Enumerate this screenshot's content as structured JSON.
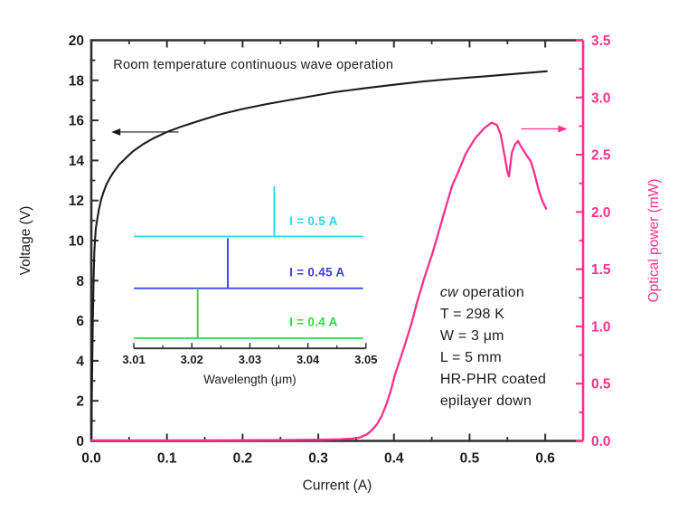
{
  "chart_data": {
    "type": "line",
    "title": "Room temperature continuous wave operation",
    "background": "#ffffff",
    "ink_color": "#1c1c1c",
    "frame_color": "#2f2f2f",
    "x_axis": {
      "label": "Current (A)",
      "range": [
        0.0,
        0.65
      ],
      "tick_values": [
        0.0,
        0.1,
        0.2,
        0.3,
        0.4,
        0.5,
        0.6
      ],
      "tick_labels": [
        "0.0",
        "0.1",
        "0.2",
        "0.3",
        "0.4",
        "0.5",
        "0.6"
      ],
      "minor_step": 0.05
    },
    "y_left": {
      "label": "Voltage (V)",
      "range": [
        0,
        20
      ],
      "tick_values": [
        0,
        2,
        4,
        6,
        8,
        10,
        12,
        14,
        16,
        18,
        20
      ],
      "tick_labels": [
        "0",
        "2",
        "4",
        "6",
        "8",
        "10",
        "12",
        "14",
        "16",
        "18",
        "20"
      ],
      "minor_step": 1,
      "color": "#1c1c1c"
    },
    "y_right": {
      "label": "Optical power (mW)",
      "range": [
        0.0,
        3.5
      ],
      "tick_values": [
        0.0,
        0.5,
        1.0,
        1.5,
        2.0,
        2.5,
        3.0,
        3.5
      ],
      "tick_labels": [
        "0.0",
        "0.5",
        "1.0",
        "1.5",
        "2.0",
        "2.5",
        "3.0",
        "3.5"
      ],
      "minor_step": 0.25,
      "color": "#ff2f8e"
    },
    "series": [
      {
        "name": "voltage",
        "axis": "left",
        "color": "#1c1c1c",
        "width": 2.1,
        "points": [
          [
            0,
            0
          ],
          [
            0.001,
            3
          ],
          [
            0.002,
            6
          ],
          [
            0.003,
            8
          ],
          [
            0.004,
            9.4
          ],
          [
            0.005,
            10.1
          ],
          [
            0.006,
            10.6
          ],
          [
            0.008,
            11.1
          ],
          [
            0.01,
            11.55
          ],
          [
            0.013,
            12.05
          ],
          [
            0.016,
            12.4
          ],
          [
            0.02,
            12.8
          ],
          [
            0.025,
            13.15
          ],
          [
            0.03,
            13.45
          ],
          [
            0.037,
            13.8
          ],
          [
            0.045,
            14.1
          ],
          [
            0.055,
            14.45
          ],
          [
            0.068,
            14.8
          ],
          [
            0.082,
            15.1
          ],
          [
            0.1,
            15.42
          ],
          [
            0.12,
            15.7
          ],
          [
            0.14,
            15.95
          ],
          [
            0.17,
            16.3
          ],
          [
            0.2,
            16.57
          ],
          [
            0.23,
            16.8
          ],
          [
            0.26,
            17.0
          ],
          [
            0.29,
            17.2
          ],
          [
            0.32,
            17.4
          ],
          [
            0.36,
            17.6
          ],
          [
            0.4,
            17.78
          ],
          [
            0.44,
            17.95
          ],
          [
            0.48,
            18.08
          ],
          [
            0.52,
            18.2
          ],
          [
            0.56,
            18.32
          ],
          [
            0.602,
            18.45
          ]
        ]
      },
      {
        "name": "optical_power",
        "axis": "right",
        "color": "#ff2f8e",
        "width": 2.3,
        "points": [
          [
            0,
            0.005
          ],
          [
            0.05,
            0.005
          ],
          [
            0.1,
            0.005
          ],
          [
            0.15,
            0.005
          ],
          [
            0.2,
            0.006
          ],
          [
            0.25,
            0.008
          ],
          [
            0.3,
            0.01
          ],
          [
            0.33,
            0.015
          ],
          [
            0.345,
            0.02
          ],
          [
            0.355,
            0.03
          ],
          [
            0.365,
            0.06
          ],
          [
            0.372,
            0.1
          ],
          [
            0.378,
            0.15
          ],
          [
            0.384,
            0.22
          ],
          [
            0.39,
            0.32
          ],
          [
            0.396,
            0.44
          ],
          [
            0.401,
            0.57
          ],
          [
            0.408,
            0.71
          ],
          [
            0.415,
            0.85
          ],
          [
            0.423,
            1.02
          ],
          [
            0.431,
            1.22
          ],
          [
            0.44,
            1.42
          ],
          [
            0.45,
            1.62
          ],
          [
            0.459,
            1.82
          ],
          [
            0.468,
            2.03
          ],
          [
            0.477,
            2.23
          ],
          [
            0.485,
            2.35
          ],
          [
            0.495,
            2.51
          ],
          [
            0.507,
            2.64
          ],
          [
            0.519,
            2.73
          ],
          [
            0.529,
            2.78
          ],
          [
            0.536,
            2.76
          ],
          [
            0.541,
            2.68
          ],
          [
            0.546,
            2.5
          ],
          [
            0.55,
            2.35
          ],
          [
            0.552,
            2.31
          ],
          [
            0.556,
            2.52
          ],
          [
            0.56,
            2.59
          ],
          [
            0.564,
            2.62
          ],
          [
            0.569,
            2.56
          ],
          [
            0.575,
            2.5
          ],
          [
            0.581,
            2.44
          ],
          [
            0.586,
            2.33
          ],
          [
            0.591,
            2.2
          ],
          [
            0.596,
            2.1
          ],
          [
            0.601,
            2.03
          ]
        ]
      }
    ],
    "title_pos": {
      "x": 0.029,
      "v": 18.58
    },
    "arrows": [
      {
        "name": "voltage-axis-arrow",
        "axis": "left",
        "color": "#1c1c1c",
        "from": [
          0.1155,
          15.42
        ],
        "to": [
          0.0265,
          15.42
        ]
      },
      {
        "name": "power-axis-arrow",
        "axis": "right",
        "color": "#ff2f8e",
        "from": [
          0.568,
          2.726
        ],
        "to": [
          0.629,
          2.726
        ]
      }
    ],
    "device_annotation": {
      "x": 0.461,
      "v_first": 7.2,
      "lines": [
        "cw operation",
        "T = 298 K",
        "W = 3 μm",
        "L = 5 mm",
        "HR-PHR coated",
        "epilayer down"
      ]
    },
    "inset": {
      "type": "line",
      "x_left": 0.0562,
      "x_right": 0.363,
      "axis_v": 4.62,
      "x_axis": {
        "label": "Wavelength (μm)",
        "range": [
          3.01,
          3.05
        ],
        "tick_values": [
          3.01,
          3.02,
          3.03,
          3.04,
          3.05
        ],
        "tick_labels": [
          "3.01",
          "3.02",
          "3.03",
          "3.04",
          "3.05"
        ],
        "minor_step": 0.005
      },
      "label_um": 3.0368,
      "spectra": [
        {
          "label": "I = 0.5 A",
          "color": "#2ad9ee",
          "peak_um": 3.0342,
          "baseline_v": 10.21,
          "peak_top_v": 12.72,
          "label_v": 10.98
        },
        {
          "label": "I = 0.45 A",
          "color": "#3c3cee",
          "peak_um": 3.0262,
          "baseline_v": 7.62,
          "peak_top_v": 10.12,
          "label_v": 8.42
        },
        {
          "label": "I = 0.4 A",
          "color": "#2cd843",
          "peak_um": 3.021,
          "baseline_v": 5.13,
          "peak_top_v": 7.62,
          "label_v": 5.93
        }
      ]
    }
  }
}
